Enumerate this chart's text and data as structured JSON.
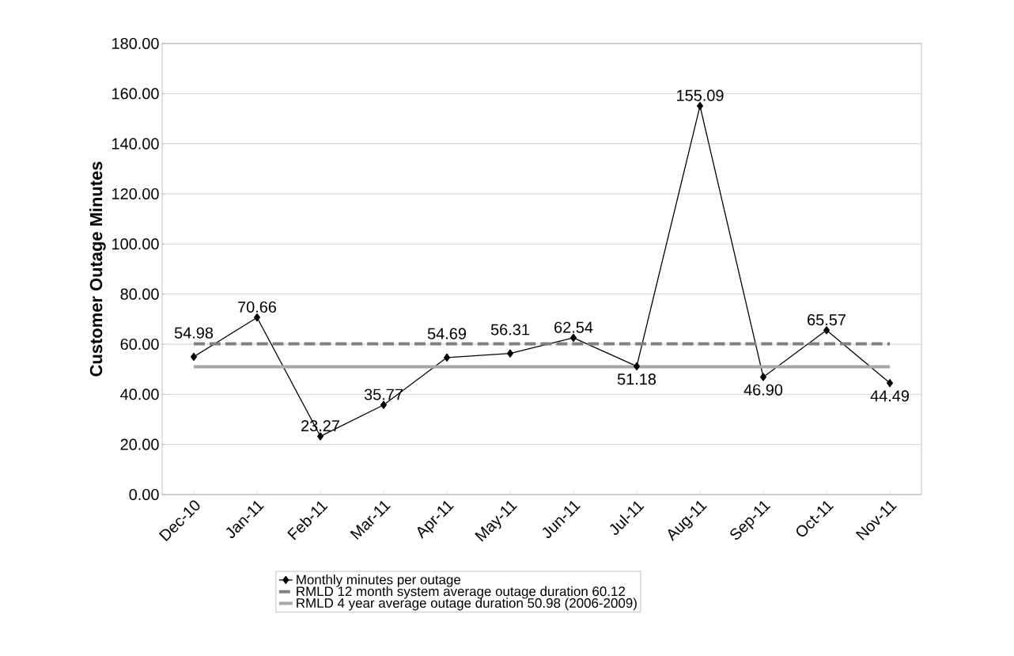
{
  "chart_data": {
    "type": "line",
    "ylabel": "Customer Outage Minutes",
    "categories": [
      "Dec-10",
      "Jan-11",
      "Feb-11",
      "Mar-11",
      "Apr-11",
      "May-11",
      "Jun-11",
      "Jul-11",
      "Aug-11",
      "Sep-11",
      "Oct-11",
      "Nov-11"
    ],
    "series": [
      {
        "name": "Monthly minutes per outage",
        "color": "#000000",
        "marker": "diamond",
        "line_style": "solid",
        "values": [
          54.98,
          70.66,
          23.27,
          35.77,
          54.69,
          56.31,
          62.54,
          51.18,
          155.09,
          46.9,
          65.57,
          44.49
        ],
        "value_labels": [
          "54.98",
          "70.66",
          "23.27",
          "35.77",
          "54.69",
          "56.31",
          "62.54",
          "51.18",
          "155.09",
          "46.90",
          "65.57",
          "44.49"
        ]
      },
      {
        "name": "RMLD 12 month system average outage duration 60.12",
        "color": "#808080",
        "marker": "none",
        "line_style": "dashed",
        "values": [
          60.12,
          60.12,
          60.12,
          60.12,
          60.12,
          60.12,
          60.12,
          60.12,
          60.12,
          60.12,
          60.12,
          60.12
        ]
      },
      {
        "name": "RMLD 4 year average outage duration 50.98 (2006-2009)",
        "color": "#a6a6a6",
        "marker": "none",
        "line_style": "solid",
        "values": [
          50.98,
          50.98,
          50.98,
          50.98,
          50.98,
          50.98,
          50.98,
          50.98,
          50.98,
          50.98,
          50.98,
          50.98
        ]
      }
    ],
    "ylim": [
      0,
      180
    ],
    "yticks": [
      {
        "value": 0,
        "label": "0.00"
      },
      {
        "value": 20,
        "label": "20.00"
      },
      {
        "value": 40,
        "label": "40.00"
      },
      {
        "value": 60,
        "label": "60.00"
      },
      {
        "value": 80,
        "label": "80.00"
      },
      {
        "value": 100,
        "label": "100.00"
      },
      {
        "value": 120,
        "label": "120.00"
      },
      {
        "value": 140,
        "label": "140.00"
      },
      {
        "value": 160,
        "label": "160.00"
      },
      {
        "value": 180,
        "label": "180.00"
      }
    ],
    "grid": "y",
    "legend": "bottom"
  }
}
